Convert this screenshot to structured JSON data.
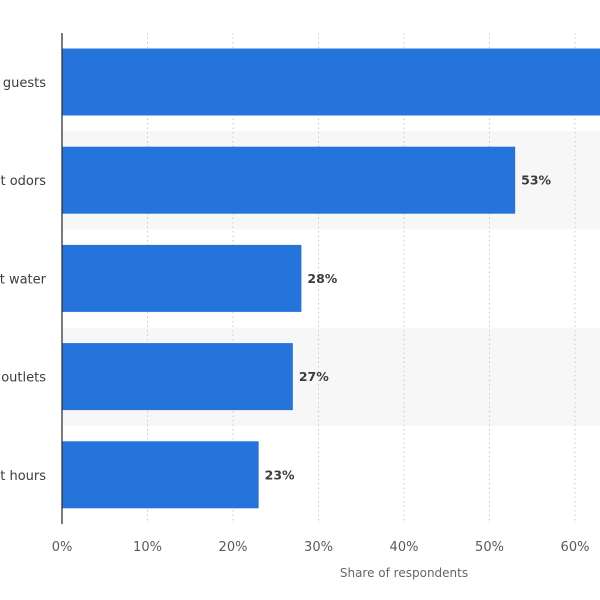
{
  "chart_data": {
    "type": "bar",
    "orientation": "horizontal",
    "categories": [
      "guests",
      "t odors",
      "t water",
      "outlets",
      "t hours"
    ],
    "values": [
      64,
      53,
      28,
      27,
      23
    ],
    "value_labels": [
      "",
      "53%",
      "28%",
      "27%",
      "23%"
    ],
    "xlabel": "Share of respondents",
    "ylabel": "",
    "xlim": [
      0,
      64
    ],
    "x_ticks": [
      0,
      10,
      20,
      30,
      40,
      50,
      60
    ],
    "x_tick_labels": [
      "0%",
      "10%",
      "20%",
      "30%",
      "40%",
      "50%",
      "60%"
    ],
    "grid": "vertical dotted",
    "legend": "none",
    "colors": {
      "bar": "#2574db",
      "band": "#f7f7f7",
      "grid": "#c9c9c9",
      "axis": "#333333"
    }
  }
}
